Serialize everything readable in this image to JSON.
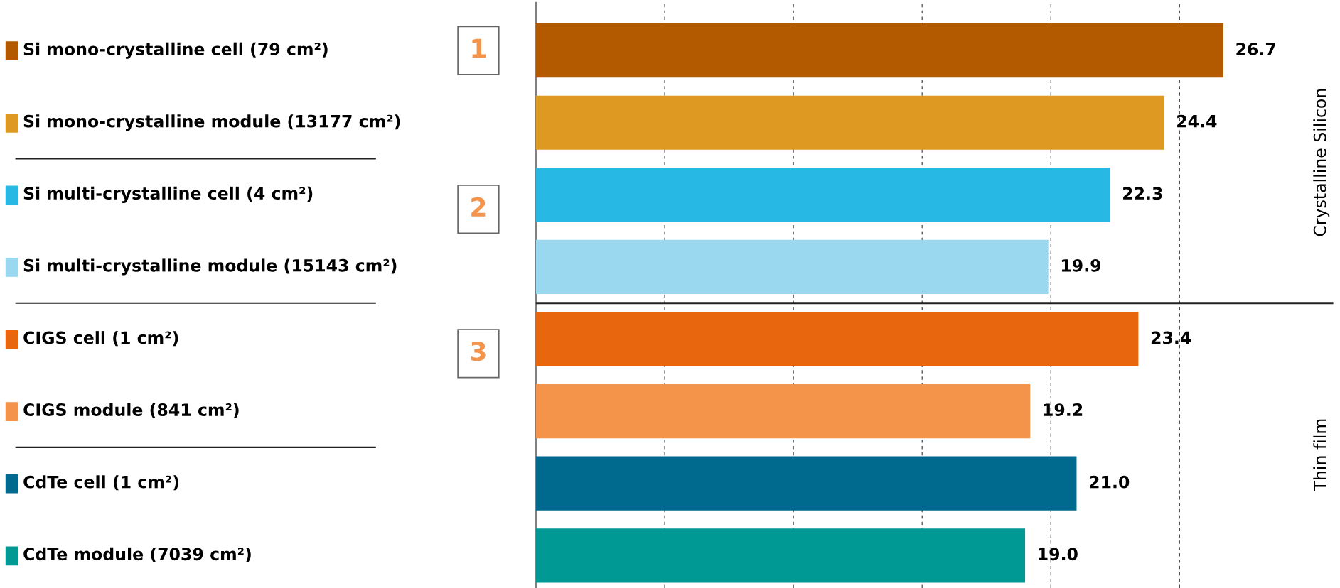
{
  "chart_data": {
    "type": "bar",
    "orientation": "horizontal",
    "categories": [
      "Si mono-crystalline cell (79 cm²)",
      "Si mono-crystalline module (13177 cm²)",
      "Si multi-crystalline cell (4 cm²)",
      "Si multi-crystalline module (15143 cm²)",
      "CIGS cell (1 cm²)",
      "CIGS module (841 cm²)",
      "CdTe cell (1 cm²)",
      "CdTe module (7039 cm²)"
    ],
    "values": [
      26.7,
      24.4,
      22.3,
      19.9,
      23.4,
      19.2,
      21.0,
      19.0
    ],
    "colors": [
      "#b35a00",
      "#dd9922",
      "#27b9e3",
      "#9ad8ef",
      "#e8670e",
      "#f4934a",
      "#006a8e",
      "#009993"
    ],
    "value_labels": [
      "26.7",
      "24.4",
      "22.3",
      "19.9",
      "23.4",
      "19.2",
      "21.0",
      "19.0"
    ],
    "xticks": [
      {
        "value": 5,
        "label": null
      },
      {
        "value": 10,
        "label": null
      },
      {
        "value": 15,
        "label": null
      },
      {
        "value": 20,
        "label": null
      },
      {
        "value": 25,
        "label": null
      }
    ],
    "grid": "x",
    "annotations": [
      "1",
      "2",
      "3",
      "Crystalline Silicon",
      "Thin film"
    ]
  }
}
